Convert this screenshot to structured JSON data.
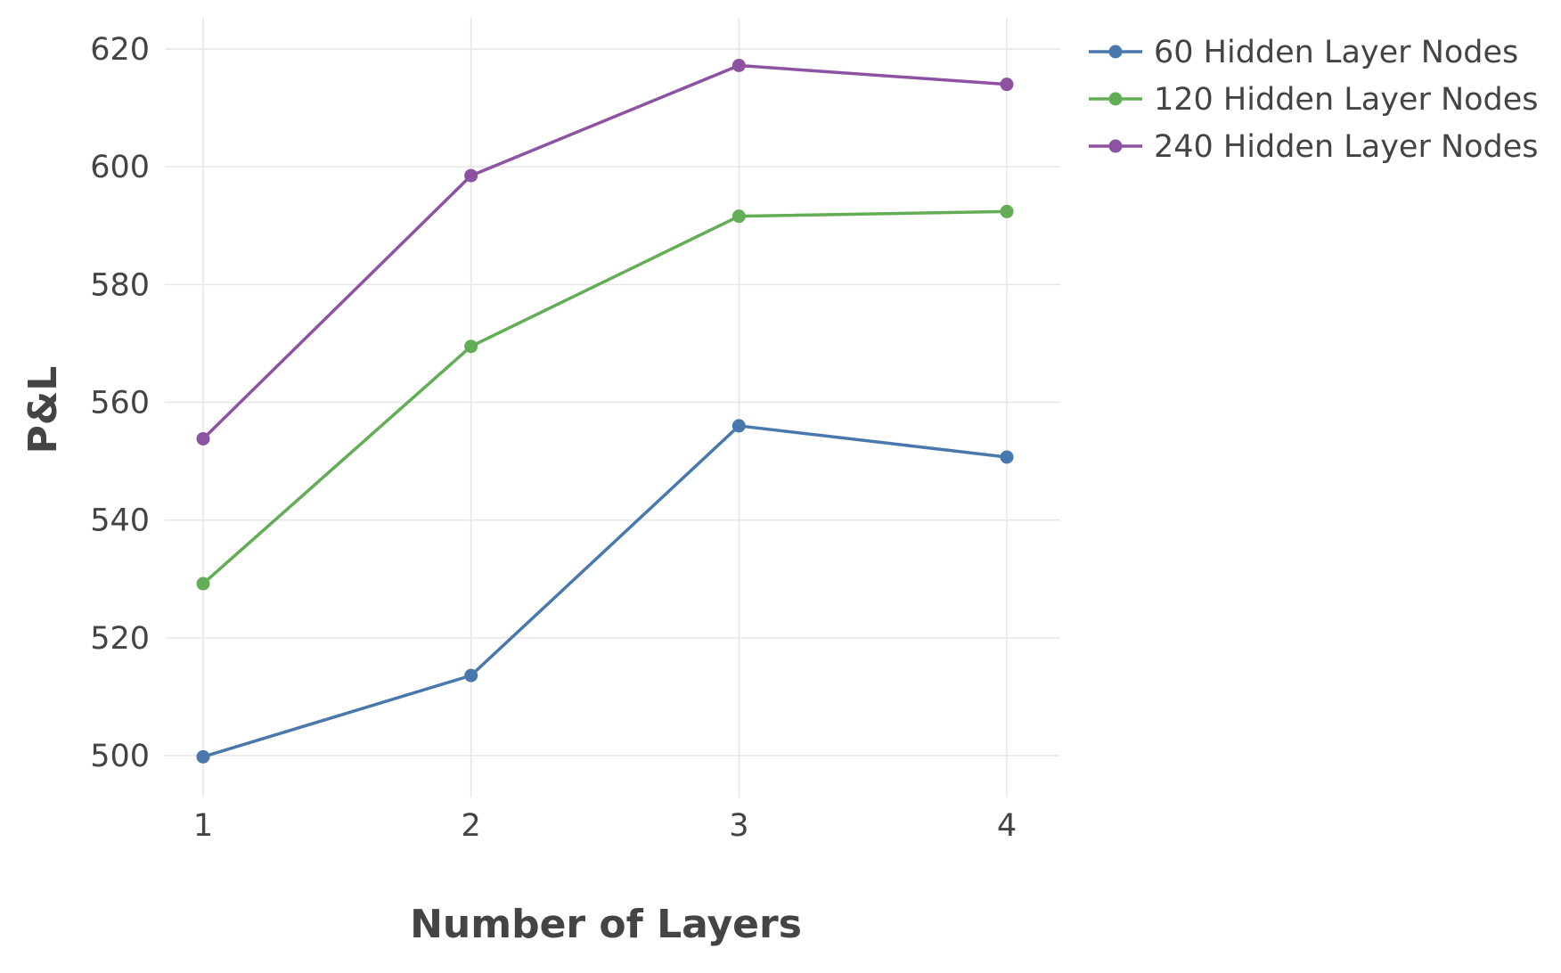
{
  "chart_data": {
    "type": "line",
    "xlabel": "Number of Layers",
    "ylabel": "P&L",
    "x": [
      1,
      2,
      3,
      4
    ],
    "x_ticks": [
      "1",
      "2",
      "3",
      "4"
    ],
    "y_ticks": [
      "500",
      "520",
      "540",
      "560",
      "580",
      "600",
      "620"
    ],
    "xlim": [
      0.6,
      4.2
    ],
    "ylim": [
      492,
      625
    ],
    "grid": true,
    "legend_position": "top-right",
    "series": [
      {
        "name": "60 Hidden Layer Nodes",
        "color": "#4878ad",
        "values": [
          499.8,
          513.6,
          556.0,
          550.7
        ]
      },
      {
        "name": "120 Hidden Layer Nodes",
        "color": "#63ad56",
        "values": [
          529.2,
          569.5,
          591.6,
          592.4
        ]
      },
      {
        "name": "240 Hidden Layer Nodes",
        "color": "#8d52a1",
        "values": [
          553.8,
          598.5,
          617.2,
          614.0
        ]
      }
    ]
  }
}
